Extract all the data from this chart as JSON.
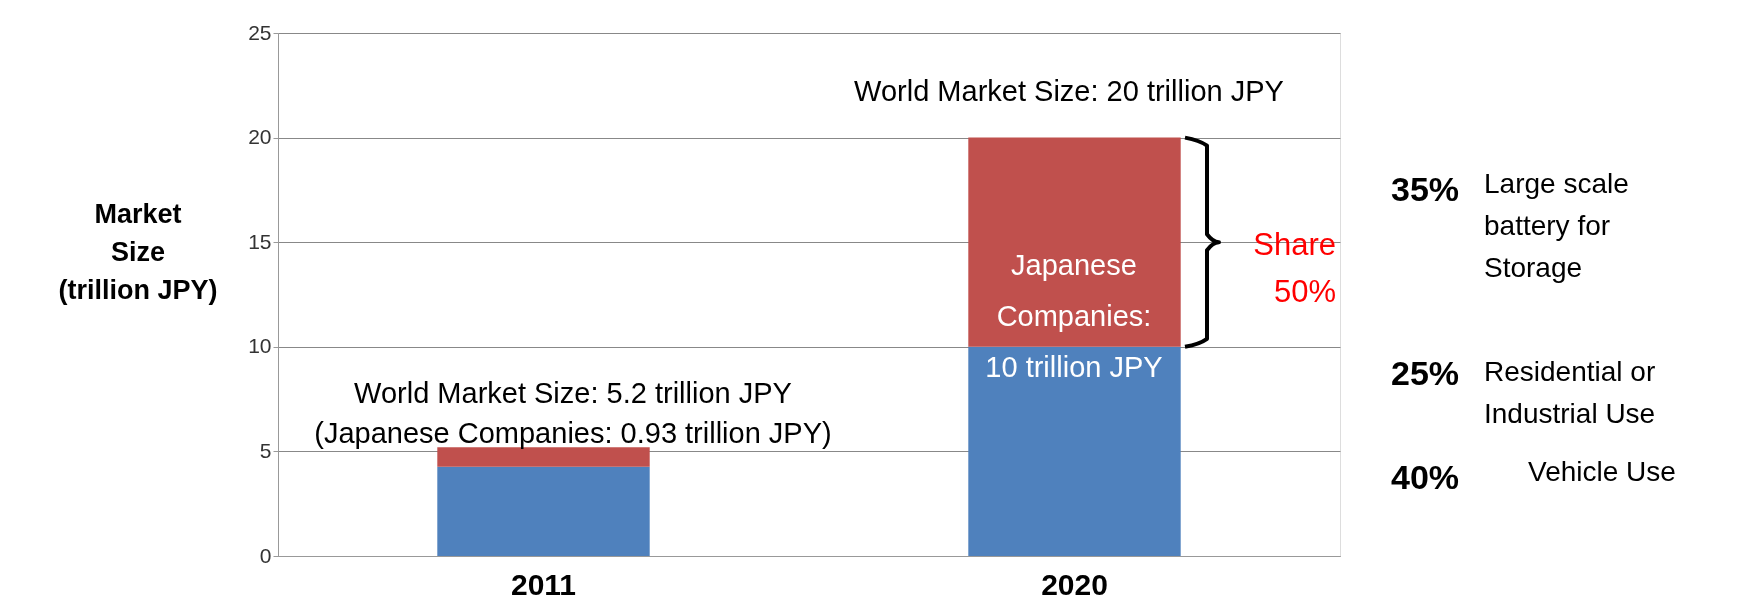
{
  "chart_data": {
    "type": "bar",
    "stacked": true,
    "categories": [
      "2011",
      "2020"
    ],
    "series": [
      {
        "color": "#4f81bd",
        "values": [
          4.27,
          10
        ]
      },
      {
        "color": "#c0504d",
        "values": [
          0.93,
          10
        ]
      }
    ],
    "ylabel": "Market Size (trillion JPY)",
    "ylim": [
      0,
      25
    ],
    "yticks": [
      0,
      5,
      10,
      15,
      20,
      25
    ],
    "grid": "y",
    "annotations": [
      "World Market Size: 20 trillion JPY",
      "World Market Size: 5.2 trillion JPY",
      "(Japanese Companies: 0.93 trillion JPY)",
      "Japanese Companies: 10 trillion JPY",
      "Share 50%",
      "35%",
      "Large scale battery for Storage",
      "25%",
      "Residential or Industrial Use",
      "40%",
      "Vehicle Use"
    ]
  }
}
